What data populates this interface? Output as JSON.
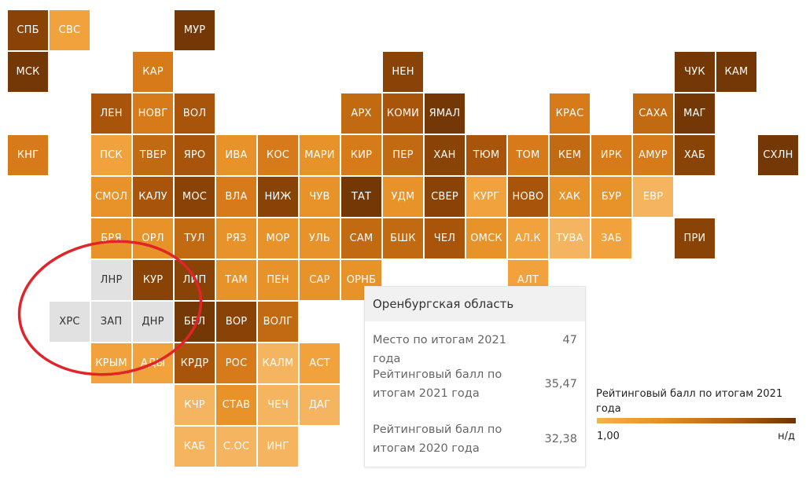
{
  "map": {
    "colors": {
      "c1": "#f5b460",
      "c2": "#f1a23c",
      "c3": "#e8922a",
      "c4": "#d77a1a",
      "c5": "#c26a12",
      "c6": "#a9540b",
      "c7": "#8a4306",
      "c8": "#733805",
      "grey": "#e1e1e1"
    },
    "tiles": [
      {
        "label": "СПБ",
        "col": 0,
        "row": 0,
        "shade": "c7"
      },
      {
        "label": "СВС",
        "col": 1,
        "row": 0,
        "shade": "c2"
      },
      {
        "label": "МУР",
        "col": 4,
        "row": 0,
        "shade": "c8"
      },
      {
        "label": "МСК",
        "col": 0,
        "row": 1,
        "shade": "c8"
      },
      {
        "label": "КАР",
        "col": 3,
        "row": 1,
        "shade": "c4"
      },
      {
        "label": "НЕН",
        "col": 9,
        "row": 1,
        "shade": "c7"
      },
      {
        "label": "ЧУК",
        "col": 16,
        "row": 1,
        "shade": "c8"
      },
      {
        "label": "КАМ",
        "col": 17,
        "row": 1,
        "shade": "c8"
      },
      {
        "label": "ЛЕН",
        "col": 2,
        "row": 2,
        "shade": "c6"
      },
      {
        "label": "НОВГ",
        "col": 3,
        "row": 2,
        "shade": "c4"
      },
      {
        "label": "ВОЛ",
        "col": 4,
        "row": 2,
        "shade": "c6"
      },
      {
        "label": "АРХ",
        "col": 8,
        "row": 2,
        "shade": "c5"
      },
      {
        "label": "КОМИ",
        "col": 9,
        "row": 2,
        "shade": "c6"
      },
      {
        "label": "ЯМАЛ",
        "col": 10,
        "row": 2,
        "shade": "c8"
      },
      {
        "label": "КРАС",
        "col": 13,
        "row": 2,
        "shade": "c4"
      },
      {
        "label": "САХА",
        "col": 15,
        "row": 2,
        "shade": "c5"
      },
      {
        "label": "МАГ",
        "col": 16,
        "row": 2,
        "shade": "c8"
      },
      {
        "label": "КНГ",
        "col": 0,
        "row": 3,
        "shade": "c4"
      },
      {
        "label": "ПСК",
        "col": 2,
        "row": 3,
        "shade": "c2"
      },
      {
        "label": "ТВЕР",
        "col": 3,
        "row": 3,
        "shade": "c5"
      },
      {
        "label": "ЯРО",
        "col": 4,
        "row": 3,
        "shade": "c6"
      },
      {
        "label": "ИВА",
        "col": 5,
        "row": 3,
        "shade": "c3"
      },
      {
        "label": "КОС",
        "col": 6,
        "row": 3,
        "shade": "c4"
      },
      {
        "label": "МАРИ",
        "col": 7,
        "row": 3,
        "shade": "c3"
      },
      {
        "label": "КИР",
        "col": 8,
        "row": 3,
        "shade": "c4"
      },
      {
        "label": "ПЕР",
        "col": 9,
        "row": 3,
        "shade": "c5"
      },
      {
        "label": "ХАН",
        "col": 10,
        "row": 3,
        "shade": "c7"
      },
      {
        "label": "ТЮМ",
        "col": 11,
        "row": 3,
        "shade": "c6"
      },
      {
        "label": "ТОМ",
        "col": 12,
        "row": 3,
        "shade": "c4"
      },
      {
        "label": "КЕМ",
        "col": 13,
        "row": 3,
        "shade": "c5"
      },
      {
        "label": "ИРК",
        "col": 14,
        "row": 3,
        "shade": "c4"
      },
      {
        "label": "АМУР",
        "col": 15,
        "row": 3,
        "shade": "c4"
      },
      {
        "label": "ХАБ",
        "col": 16,
        "row": 3,
        "shade": "c7"
      },
      {
        "label": "СХЛН",
        "col": 18,
        "row": 3,
        "shade": "c8"
      },
      {
        "label": "СМОЛ",
        "col": 2,
        "row": 4,
        "shade": "c3"
      },
      {
        "label": "КАЛУ",
        "col": 3,
        "row": 4,
        "shade": "c6"
      },
      {
        "label": "МОС",
        "col": 4,
        "row": 4,
        "shade": "c7"
      },
      {
        "label": "ВЛА",
        "col": 5,
        "row": 4,
        "shade": "c4"
      },
      {
        "label": "НИЖ",
        "col": 6,
        "row": 4,
        "shade": "c7"
      },
      {
        "label": "ЧУВ",
        "col": 7,
        "row": 4,
        "shade": "c3"
      },
      {
        "label": "ТАТ",
        "col": 8,
        "row": 4,
        "shade": "c8"
      },
      {
        "label": "УДМ",
        "col": 9,
        "row": 4,
        "shade": "c3"
      },
      {
        "label": "СВЕР",
        "col": 10,
        "row": 4,
        "shade": "c7"
      },
      {
        "label": "КУРГ",
        "col": 11,
        "row": 4,
        "shade": "c2"
      },
      {
        "label": "НОВО",
        "col": 12,
        "row": 4,
        "shade": "c6"
      },
      {
        "label": "ХАК",
        "col": 13,
        "row": 4,
        "shade": "c3"
      },
      {
        "label": "БУР",
        "col": 14,
        "row": 4,
        "shade": "c3"
      },
      {
        "label": "ЕВР",
        "col": 15,
        "row": 4,
        "shade": "c1"
      },
      {
        "label": "БРЯ",
        "col": 2,
        "row": 5,
        "shade": "c3"
      },
      {
        "label": "ОРЛ",
        "col": 3,
        "row": 5,
        "shade": "c3"
      },
      {
        "label": "ТУЛ",
        "col": 4,
        "row": 5,
        "shade": "c5"
      },
      {
        "label": "РЯЗ",
        "col": 5,
        "row": 5,
        "shade": "c3"
      },
      {
        "label": "МОР",
        "col": 6,
        "row": 5,
        "shade": "c3"
      },
      {
        "label": "УЛЬ",
        "col": 7,
        "row": 5,
        "shade": "c3"
      },
      {
        "label": "САМ",
        "col": 8,
        "row": 5,
        "shade": "c5"
      },
      {
        "label": "БШК",
        "col": 9,
        "row": 5,
        "shade": "c5"
      },
      {
        "label": "ЧЕЛ",
        "col": 10,
        "row": 5,
        "shade": "c6"
      },
      {
        "label": "ОМСК",
        "col": 11,
        "row": 5,
        "shade": "c3"
      },
      {
        "label": "АЛ.К",
        "col": 12,
        "row": 5,
        "shade": "c2"
      },
      {
        "label": "ТУВА",
        "col": 13,
        "row": 5,
        "shade": "c1"
      },
      {
        "label": "ЗАБ",
        "col": 14,
        "row": 5,
        "shade": "c2"
      },
      {
        "label": "ПРИ",
        "col": 16,
        "row": 5,
        "shade": "c7"
      },
      {
        "label": "ЛНР",
        "col": 2,
        "row": 6,
        "shade": "grey"
      },
      {
        "label": "КУР",
        "col": 3,
        "row": 6,
        "shade": "c7"
      },
      {
        "label": "ЛИП",
        "col": 4,
        "row": 6,
        "shade": "c7"
      },
      {
        "label": "ТАМ",
        "col": 5,
        "row": 6,
        "shade": "c3"
      },
      {
        "label": "ПЕН",
        "col": 6,
        "row": 6,
        "shade": "c3"
      },
      {
        "label": "САР",
        "col": 7,
        "row": 6,
        "shade": "c3"
      },
      {
        "label": "ОРНБ",
        "col": 8,
        "row": 6,
        "shade": "c3"
      },
      {
        "label": "АЛТ",
        "col": 12,
        "row": 6,
        "shade": "c2"
      },
      {
        "label": "ХРС",
        "col": 1,
        "row": 7,
        "shade": "grey"
      },
      {
        "label": "ЗАП",
        "col": 2,
        "row": 7,
        "shade": "grey"
      },
      {
        "label": "ДНР",
        "col": 3,
        "row": 7,
        "shade": "grey"
      },
      {
        "label": "БЕЛ",
        "col": 4,
        "row": 7,
        "shade": "c8"
      },
      {
        "label": "ВОР",
        "col": 5,
        "row": 7,
        "shade": "c7"
      },
      {
        "label": "ВОЛГ",
        "col": 6,
        "row": 7,
        "shade": "c5"
      },
      {
        "label": "КРЫМ",
        "col": 2,
        "row": 8,
        "shade": "c2"
      },
      {
        "label": "АДЫ",
        "col": 3,
        "row": 8,
        "shade": "c2"
      },
      {
        "label": "КРДР",
        "col": 4,
        "row": 8,
        "shade": "c6"
      },
      {
        "label": "РОС",
        "col": 5,
        "row": 8,
        "shade": "c4"
      },
      {
        "label": "КАЛМ",
        "col": 6,
        "row": 8,
        "shade": "c1"
      },
      {
        "label": "АСТ",
        "col": 7,
        "row": 8,
        "shade": "c2"
      },
      {
        "label": "КЧР",
        "col": 4,
        "row": 9,
        "shade": "c1"
      },
      {
        "label": "СТАВ",
        "col": 5,
        "row": 9,
        "shade": "c3"
      },
      {
        "label": "ЧЕЧ",
        "col": 6,
        "row": 9,
        "shade": "c1"
      },
      {
        "label": "ДАГ",
        "col": 7,
        "row": 9,
        "shade": "c1"
      },
      {
        "label": "КАБ",
        "col": 4,
        "row": 10,
        "shade": "c1"
      },
      {
        "label": "С.ОС",
        "col": 5,
        "row": 10,
        "shade": "c1"
      },
      {
        "label": "ИНГ",
        "col": 6,
        "row": 10,
        "shade": "c1"
      }
    ]
  },
  "tooltip": {
    "title": "Оренбургская область",
    "rows": [
      {
        "label": "Место по итогам 2021 года",
        "value": "47"
      },
      {
        "label": "Рейтинговый балл по итогам 2021 года",
        "value": "35,47"
      },
      {
        "label": "Рейтинговый балл по итогам 2020 года",
        "value": "32,38"
      }
    ]
  },
  "legend": {
    "title": "Рейтинговый балл по итогам 2021 года",
    "min_label": "1,00",
    "max_label": "н/д"
  },
  "annotation": {
    "stroke_color": "#e0242a"
  }
}
